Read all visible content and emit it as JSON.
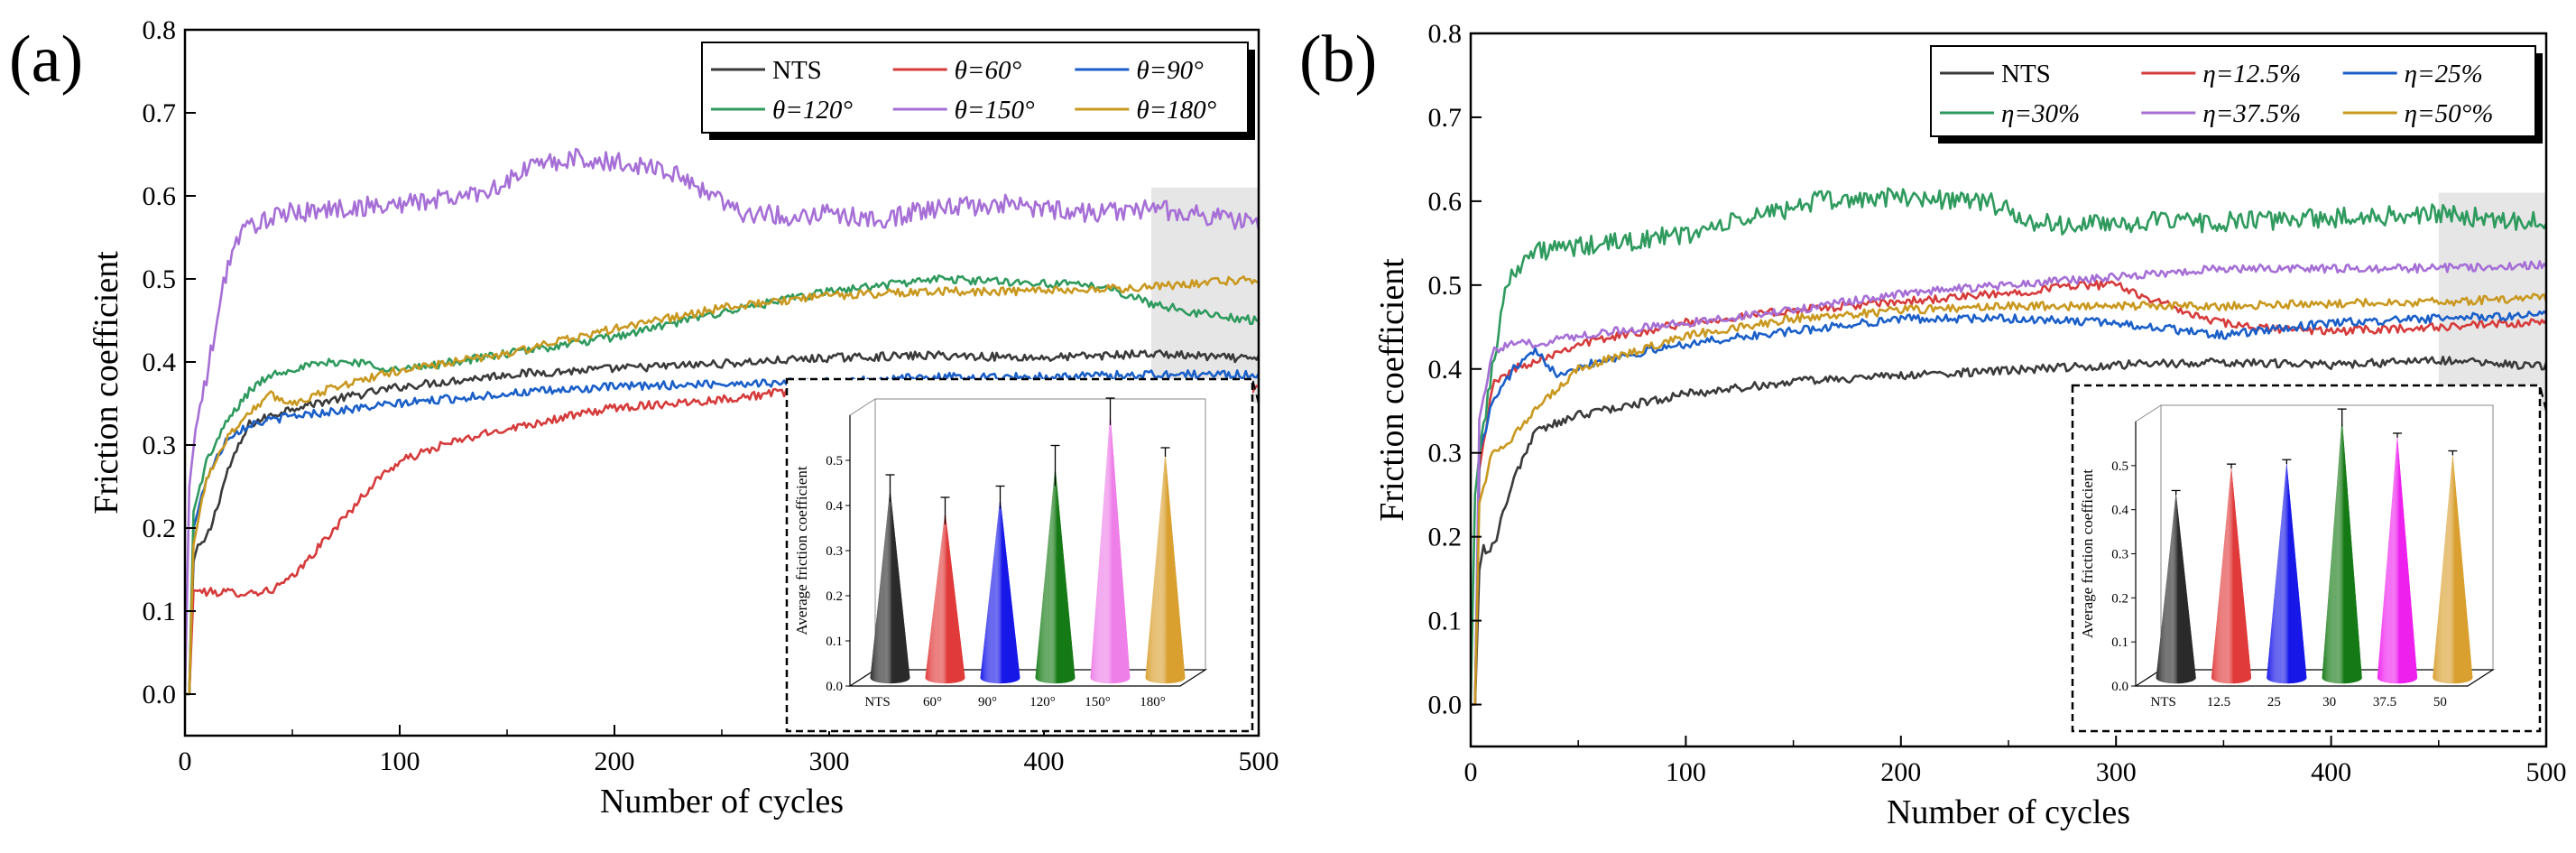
{
  "chart_data": [
    {
      "panel": "(a)",
      "type": "line",
      "xlabel": "Number of cycles",
      "ylabel": "Friction coefficient",
      "xlim": [
        0,
        500
      ],
      "ylim": [
        -0.05,
        0.8
      ],
      "xticks": [
        0,
        100,
        200,
        300,
        400,
        500
      ],
      "yticks": [
        0.0,
        0.1,
        0.2,
        0.3,
        0.4,
        0.5,
        0.6,
        0.7,
        0.8
      ],
      "legend_position": "top-right",
      "highlight_region": [
        450,
        500
      ],
      "series": [
        {
          "name": "NTS",
          "color": "#3a3a3a",
          "points": [
            [
              0,
              0.0
            ],
            [
              2,
              0.0
            ],
            [
              4,
              0.16
            ],
            [
              6,
              0.18
            ],
            [
              8,
              0.178
            ],
            [
              12,
              0.2
            ],
            [
              20,
              0.27
            ],
            [
              30,
              0.325
            ],
            [
              50,
              0.345
            ],
            [
              100,
              0.37
            ],
            [
              150,
              0.385
            ],
            [
              200,
              0.392
            ],
            [
              250,
              0.398
            ],
            [
              300,
              0.405
            ],
            [
              350,
              0.408
            ],
            [
              400,
              0.405
            ],
            [
              450,
              0.41
            ],
            [
              500,
              0.403
            ]
          ]
        },
        {
          "name": "θ=60°",
          "color": "#d63b3b",
          "points": [
            [
              0,
              0.0
            ],
            [
              2,
              0.0
            ],
            [
              4,
              0.125
            ],
            [
              10,
              0.123
            ],
            [
              30,
              0.122
            ],
            [
              40,
              0.125
            ],
            [
              50,
              0.14
            ],
            [
              60,
              0.17
            ],
            [
              70,
              0.2
            ],
            [
              80,
              0.23
            ],
            [
              90,
              0.26
            ],
            [
              100,
              0.28
            ],
            [
              120,
              0.3
            ],
            [
              150,
              0.32
            ],
            [
              200,
              0.345
            ],
            [
              250,
              0.355
            ],
            [
              300,
              0.37
            ],
            [
              350,
              0.375
            ],
            [
              400,
              0.372
            ],
            [
              450,
              0.37
            ],
            [
              500,
              0.368
            ]
          ]
        },
        {
          "name": "θ=90°",
          "color": "#1a5fc8",
          "points": [
            [
              0,
              0.0
            ],
            [
              2,
              0.0
            ],
            [
              4,
              0.2
            ],
            [
              10,
              0.26
            ],
            [
              20,
              0.31
            ],
            [
              30,
              0.325
            ],
            [
              50,
              0.335
            ],
            [
              100,
              0.35
            ],
            [
              150,
              0.362
            ],
            [
              200,
              0.37
            ],
            [
              250,
              0.374
            ],
            [
              300,
              0.376
            ],
            [
              350,
              0.382
            ],
            [
              400,
              0.382
            ],
            [
              450,
              0.385
            ],
            [
              500,
              0.385
            ]
          ]
        },
        {
          "name": "θ=120°",
          "color": "#2f9a5e",
          "points": [
            [
              0,
              0.0
            ],
            [
              2,
              0.0
            ],
            [
              4,
              0.22
            ],
            [
              10,
              0.28
            ],
            [
              20,
              0.33
            ],
            [
              30,
              0.365
            ],
            [
              40,
              0.385
            ],
            [
              50,
              0.392
            ],
            [
              70,
              0.4
            ],
            [
              80,
              0.4
            ],
            [
              100,
              0.39
            ],
            [
              150,
              0.41
            ],
            [
              200,
              0.43
            ],
            [
              250,
              0.46
            ],
            [
              300,
              0.485
            ],
            [
              350,
              0.5
            ],
            [
              400,
              0.495
            ],
            [
              430,
              0.49
            ],
            [
              450,
              0.47
            ],
            [
              480,
              0.455
            ],
            [
              500,
              0.45
            ]
          ]
        },
        {
          "name": "θ=150°",
          "color": "#a66fd6",
          "points": [
            [
              0,
              0.0
            ],
            [
              2,
              0.25
            ],
            [
              5,
              0.32
            ],
            [
              10,
              0.38
            ],
            [
              15,
              0.45
            ],
            [
              20,
              0.52
            ],
            [
              25,
              0.55
            ],
            [
              30,
              0.565
            ],
            [
              50,
              0.58
            ],
            [
              100,
              0.59
            ],
            [
              130,
              0.6
            ],
            [
              150,
              0.615
            ],
            [
              160,
              0.635
            ],
            [
              180,
              0.645
            ],
            [
              200,
              0.64
            ],
            [
              220,
              0.635
            ],
            [
              240,
              0.61
            ],
            [
              260,
              0.58
            ],
            [
              280,
              0.575
            ],
            [
              300,
              0.58
            ],
            [
              320,
              0.57
            ],
            [
              350,
              0.585
            ],
            [
              380,
              0.59
            ],
            [
              400,
              0.585
            ],
            [
              420,
              0.58
            ],
            [
              450,
              0.585
            ],
            [
              480,
              0.575
            ],
            [
              500,
              0.565
            ]
          ]
        },
        {
          "name": "θ=180°",
          "color": "#c9981f",
          "points": [
            [
              0,
              0.0
            ],
            [
              2,
              0.0
            ],
            [
              4,
              0.18
            ],
            [
              10,
              0.26
            ],
            [
              20,
              0.31
            ],
            [
              30,
              0.34
            ],
            [
              40,
              0.36
            ],
            [
              50,
              0.35
            ],
            [
              70,
              0.37
            ],
            [
              100,
              0.39
            ],
            [
              150,
              0.41
            ],
            [
              200,
              0.44
            ],
            [
              250,
              0.465
            ],
            [
              300,
              0.48
            ],
            [
              350,
              0.485
            ],
            [
              400,
              0.485
            ],
            [
              450,
              0.49
            ],
            [
              500,
              0.5
            ]
          ]
        }
      ],
      "inset": {
        "ylabel": "Average friction coefficient",
        "ylim": [
          0.0,
          0.6
        ],
        "yticks": [
          0.0,
          0.1,
          0.2,
          0.3,
          0.4,
          0.5
        ],
        "categories": [
          "NTS",
          "60°",
          "90°",
          "120°",
          "150°",
          "180°"
        ],
        "values": [
          0.42,
          0.37,
          0.4,
          0.47,
          0.59,
          0.5
        ],
        "errors": [
          0.03,
          0.03,
          0.025,
          0.045,
          0.03,
          0.01
        ],
        "colors": [
          "#2a2a2a",
          "#e03a3a",
          "#1717e8",
          "#157a15",
          "#ee7ee8",
          "#d9a030"
        ]
      }
    },
    {
      "panel": "(b)",
      "type": "line",
      "xlabel": "Number of cycles",
      "ylabel": "Friction coefficient",
      "xlim": [
        0,
        500
      ],
      "ylim": [
        -0.05,
        0.8
      ],
      "xticks": [
        0,
        100,
        200,
        300,
        400,
        500
      ],
      "yticks": [
        0.0,
        0.1,
        0.2,
        0.3,
        0.4,
        0.5,
        0.6,
        0.7,
        0.8
      ],
      "legend_position": "top-right",
      "highlight_region": [
        450,
        500
      ],
      "series": [
        {
          "name": "NTS",
          "color": "#3a3a3a",
          "points": [
            [
              0,
              0.0
            ],
            [
              2,
              0.0
            ],
            [
              4,
              0.16
            ],
            [
              6,
              0.19
            ],
            [
              8,
              0.18
            ],
            [
              12,
              0.2
            ],
            [
              20,
              0.27
            ],
            [
              30,
              0.325
            ],
            [
              50,
              0.345
            ],
            [
              100,
              0.37
            ],
            [
              150,
              0.385
            ],
            [
              200,
              0.392
            ],
            [
              250,
              0.398
            ],
            [
              300,
              0.405
            ],
            [
              350,
              0.408
            ],
            [
              400,
              0.405
            ],
            [
              450,
              0.41
            ],
            [
              500,
              0.403
            ]
          ]
        },
        {
          "name": "η=12.5%",
          "color": "#d63b3b",
          "points": [
            [
              0,
              0.0
            ],
            [
              2,
              0.0
            ],
            [
              4,
              0.28
            ],
            [
              10,
              0.38
            ],
            [
              20,
              0.4
            ],
            [
              30,
              0.41
            ],
            [
              50,
              0.43
            ],
            [
              100,
              0.455
            ],
            [
              150,
              0.47
            ],
            [
              200,
              0.48
            ],
            [
              250,
              0.49
            ],
            [
              280,
              0.5
            ],
            [
              300,
              0.5
            ],
            [
              320,
              0.48
            ],
            [
              340,
              0.46
            ],
            [
              360,
              0.45
            ],
            [
              400,
              0.445
            ],
            [
              450,
              0.45
            ],
            [
              500,
              0.455
            ]
          ]
        },
        {
          "name": "η=25%",
          "color": "#1a5fc8",
          "points": [
            [
              0,
              0.0
            ],
            [
              2,
              0.0
            ],
            [
              4,
              0.3
            ],
            [
              10,
              0.36
            ],
            [
              20,
              0.4
            ],
            [
              30,
              0.42
            ],
            [
              40,
              0.395
            ],
            [
              60,
              0.41
            ],
            [
              100,
              0.43
            ],
            [
              150,
              0.445
            ],
            [
              200,
              0.46
            ],
            [
              250,
              0.46
            ],
            [
              300,
              0.455
            ],
            [
              350,
              0.44
            ],
            [
              400,
              0.455
            ],
            [
              450,
              0.46
            ],
            [
              500,
              0.465
            ]
          ]
        },
        {
          "name": "η=30%",
          "color": "#2f9a5e",
          "points": [
            [
              0,
              0.0
            ],
            [
              2,
              0.25
            ],
            [
              5,
              0.32
            ],
            [
              10,
              0.4
            ],
            [
              15,
              0.48
            ],
            [
              20,
              0.52
            ],
            [
              30,
              0.54
            ],
            [
              50,
              0.545
            ],
            [
              100,
              0.56
            ],
            [
              130,
              0.58
            ],
            [
              160,
              0.6
            ],
            [
              200,
              0.605
            ],
            [
              240,
              0.6
            ],
            [
              260,
              0.575
            ],
            [
              280,
              0.57
            ],
            [
              300,
              0.575
            ],
            [
              350,
              0.575
            ],
            [
              400,
              0.58
            ],
            [
              450,
              0.585
            ],
            [
              500,
              0.575
            ]
          ]
        },
        {
          "name": "η=37.5%",
          "color": "#a66fd6",
          "points": [
            [
              0,
              0.0
            ],
            [
              2,
              0.0
            ],
            [
              4,
              0.34
            ],
            [
              10,
              0.42
            ],
            [
              20,
              0.43
            ],
            [
              30,
              0.43
            ],
            [
              50,
              0.44
            ],
            [
              100,
              0.455
            ],
            [
              150,
              0.47
            ],
            [
              200,
              0.49
            ],
            [
              250,
              0.5
            ],
            [
              300,
              0.51
            ],
            [
              350,
              0.52
            ],
            [
              400,
              0.52
            ],
            [
              450,
              0.52
            ],
            [
              500,
              0.525
            ]
          ]
        },
        {
          "name": "η=50°%",
          "color": "#c9981f",
          "points": [
            [
              0,
              0.0
            ],
            [
              2,
              0.0
            ],
            [
              4,
              0.24
            ],
            [
              10,
              0.3
            ],
            [
              20,
              0.32
            ],
            [
              30,
              0.35
            ],
            [
              50,
              0.4
            ],
            [
              100,
              0.44
            ],
            [
              150,
              0.46
            ],
            [
              200,
              0.47
            ],
            [
              250,
              0.475
            ],
            [
              300,
              0.475
            ],
            [
              350,
              0.475
            ],
            [
              400,
              0.478
            ],
            [
              450,
              0.48
            ],
            [
              500,
              0.485
            ]
          ]
        }
      ],
      "inset": {
        "ylabel": "Average friction coefficient",
        "ylim": [
          0.0,
          0.6
        ],
        "yticks": [
          0.0,
          0.1,
          0.2,
          0.3,
          0.4,
          0.5
        ],
        "categories": [
          "NTS",
          "12.5",
          "25",
          "30",
          "37.5",
          "50"
        ],
        "values": [
          0.42,
          0.48,
          0.49,
          0.59,
          0.55,
          0.51
        ],
        "errors": [
          0.005,
          0.005,
          0.005,
          0.02,
          0.005,
          0.005
        ],
        "colors": [
          "#2a2a2a",
          "#e03a3a",
          "#1717e8",
          "#157a15",
          "#ee20ee",
          "#d9a030"
        ]
      }
    }
  ]
}
